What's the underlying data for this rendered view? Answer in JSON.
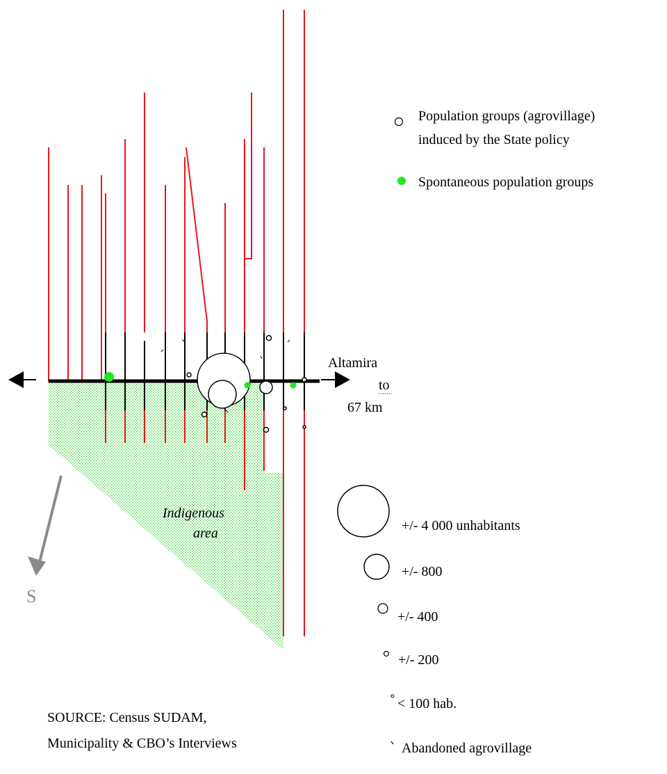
{
  "legend": {
    "agrovillage": "Population groups (agrovillage)",
    "agrovillage_line2": "induced by the State policy",
    "spontaneous": "Spontaneous population groups"
  },
  "sizes": {
    "s4000": "+/- 4 000 unhabitants",
    "s800": "+/- 800",
    "s400": "+/- 400",
    "s200": "+/- 200",
    "s100": "< 100 hab.",
    "abandoned": "Abandoned agrovillage"
  },
  "destination": {
    "name": "Altamira",
    "prep": "to",
    "distance": "67 km"
  },
  "indigenous": {
    "line1": "Indigenous",
    "line2": "area"
  },
  "compass": {
    "label": "S"
  },
  "source": {
    "line1": "SOURCE: Census SUDAM,",
    "line2": "Municipality & CBO’s Interviews"
  },
  "colors": {
    "road_red": "#e8151b",
    "highway": "#000000",
    "spontaneous": "#22e622",
    "indigenous_dots": "#39d639",
    "compass_arrow": "#8a8a8a"
  }
}
